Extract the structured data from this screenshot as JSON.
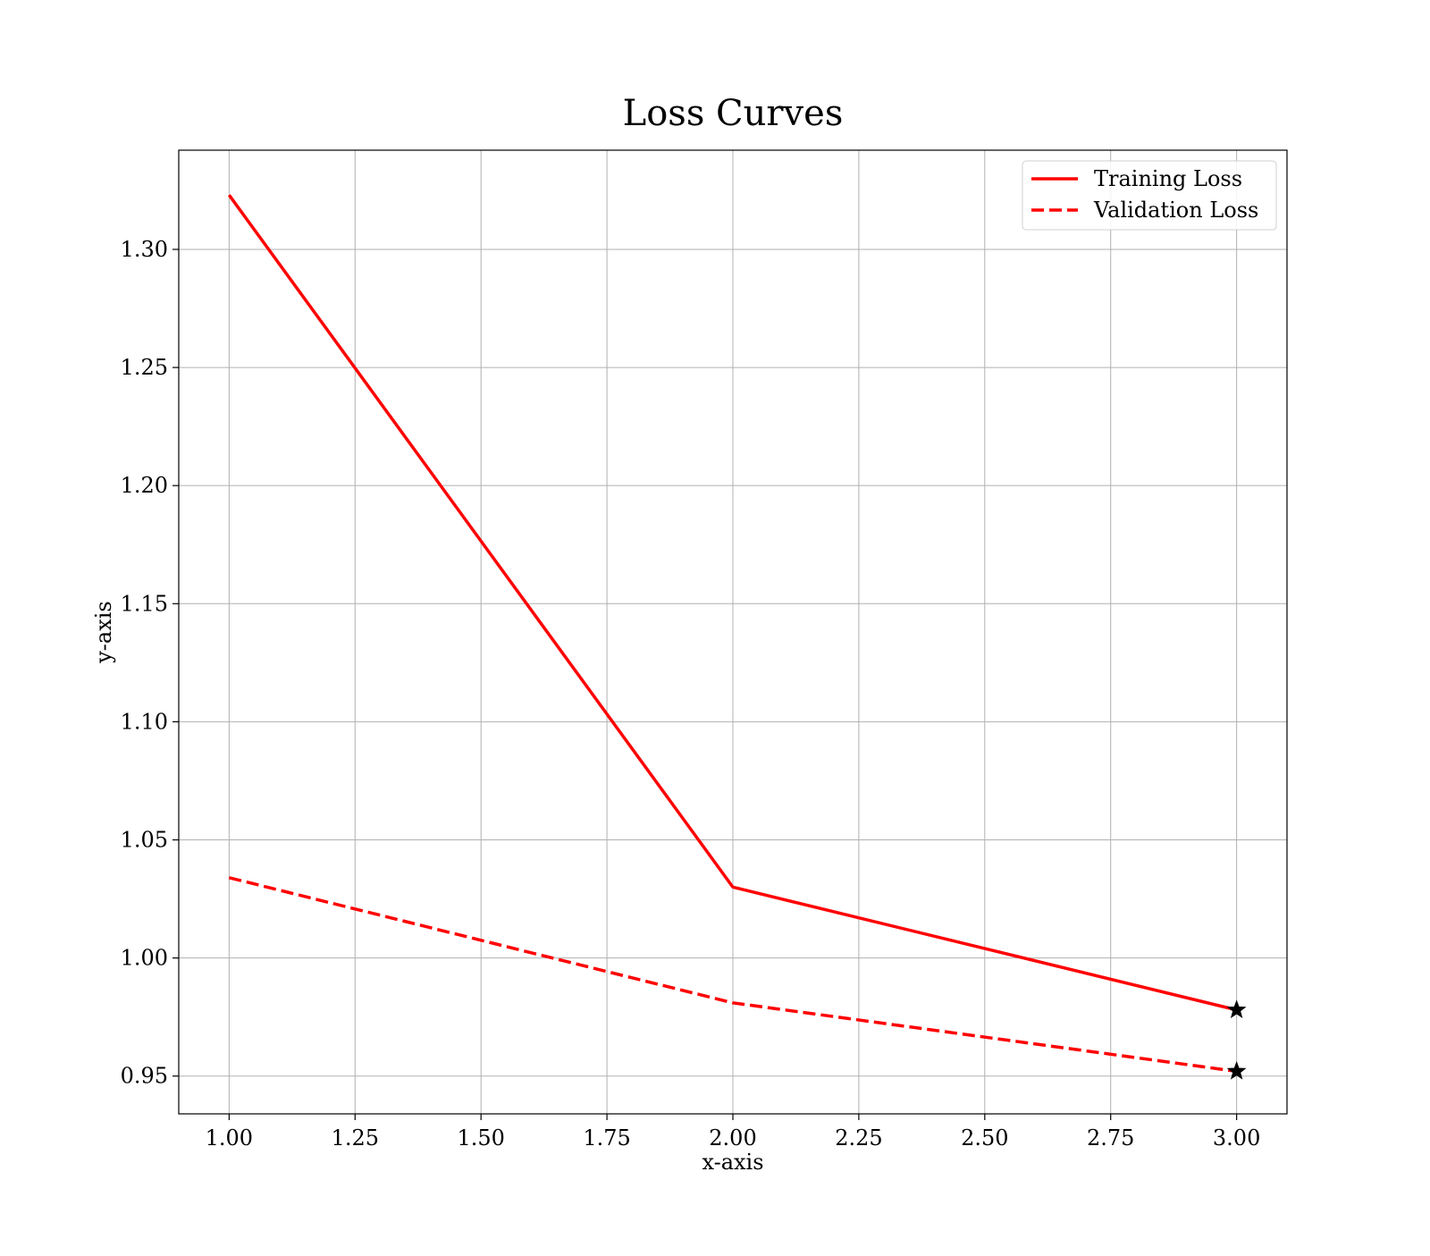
{
  "chart_data": {
    "type": "line",
    "title": "Loss Curves",
    "xlabel": "x-axis",
    "ylabel": "y-axis",
    "xlim": [
      0.9,
      3.1
    ],
    "ylim": [
      0.934,
      1.342
    ],
    "xticks": [
      1.0,
      1.25,
      1.5,
      1.75,
      2.0,
      2.25,
      2.5,
      2.75,
      3.0
    ],
    "xtick_labels": [
      "1.00",
      "1.25",
      "1.50",
      "1.75",
      "2.00",
      "2.25",
      "2.50",
      "2.75",
      "3.00"
    ],
    "yticks": [
      0.95,
      1.0,
      1.05,
      1.1,
      1.15,
      1.2,
      1.25,
      1.3
    ],
    "ytick_labels": [
      "0.95",
      "1.00",
      "1.05",
      "1.10",
      "1.15",
      "1.20",
      "1.25",
      "1.30"
    ],
    "grid": true,
    "legend_position": "top-right",
    "series": [
      {
        "name": "Training Loss",
        "color": "#ff0000",
        "linestyle": "solid",
        "x": [
          1,
          2,
          3
        ],
        "y": [
          1.323,
          1.03,
          0.978
        ],
        "end_marker": "star"
      },
      {
        "name": "Validation Loss",
        "color": "#ff0000",
        "linestyle": "dashed",
        "x": [
          1,
          2,
          3
        ],
        "y": [
          1.034,
          0.981,
          0.952
        ],
        "end_marker": "star"
      }
    ]
  }
}
